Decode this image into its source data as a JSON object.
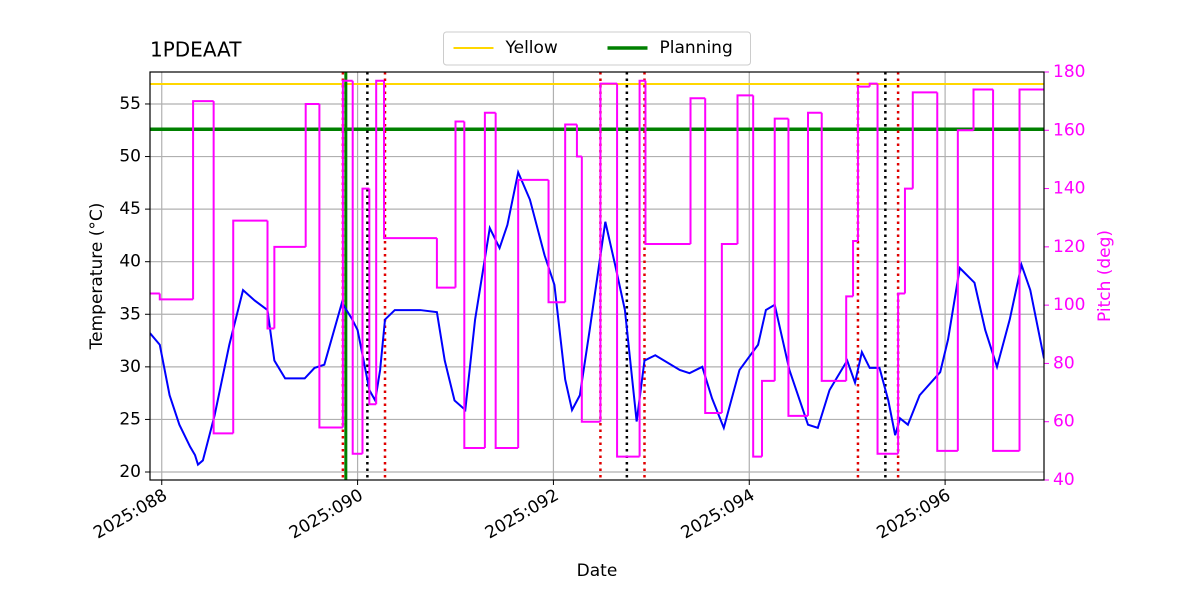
{
  "chart_data": {
    "type": "line",
    "title": "1PDEAAT",
    "xlabel": "Date",
    "ylabel": "Temperature (°C)",
    "y2label": "Pitch (deg)",
    "xlim": [
      87.88,
      97.01
    ],
    "xticks": [
      {
        "value": 88,
        "label": "2025:088"
      },
      {
        "value": 90,
        "label": "2025:090"
      },
      {
        "value": 92,
        "label": "2025:092"
      },
      {
        "value": 94,
        "label": "2025:094"
      },
      {
        "value": 96,
        "label": "2025:096"
      }
    ],
    "ylim": [
      19.24,
      58.04
    ],
    "yticks": [
      20,
      25,
      30,
      35,
      40,
      45,
      50,
      55
    ],
    "y2lim": [
      40,
      180
    ],
    "y2ticks": [
      40,
      60,
      80,
      100,
      120,
      140,
      160,
      180
    ],
    "y2color": "#ff00ff",
    "grid": true,
    "legend": "upper center",
    "hlines": [
      {
        "name": "Yellow",
        "color": "#ffd700",
        "value": 56.9
      },
      {
        "name": "Planning",
        "color": "#008000",
        "value": 52.6
      }
    ],
    "vlines": [
      {
        "x": 89.85,
        "color": "#e00000",
        "style": "dotted"
      },
      {
        "x": 89.88,
        "color": "#008000",
        "style": "solid"
      },
      {
        "x": 90.1,
        "color": "#000000",
        "style": "dotted"
      },
      {
        "x": 90.28,
        "color": "#e00000",
        "style": "dotted"
      },
      {
        "x": 92.48,
        "color": "#e00000",
        "style": "dotted"
      },
      {
        "x": 92.75,
        "color": "#000000",
        "style": "dotted"
      },
      {
        "x": 92.93,
        "color": "#e00000",
        "style": "dotted"
      },
      {
        "x": 95.11,
        "color": "#e00000",
        "style": "dotted"
      },
      {
        "x": 95.39,
        "color": "#000000",
        "style": "dotted"
      },
      {
        "x": 95.52,
        "color": "#e00000",
        "style": "dotted"
      }
    ],
    "series": [
      {
        "color": "#0000ff",
        "step": false,
        "x": [
          87.88,
          87.98,
          88.08,
          88.18,
          88.29,
          88.34,
          88.37,
          88.42,
          88.54,
          88.69,
          88.83,
          88.95,
          89.08,
          89.15,
          89.26,
          89.46,
          89.56,
          89.66,
          89.84,
          89.94,
          90.0,
          90.07,
          90.12,
          90.18,
          90.23,
          90.28,
          90.38,
          90.64,
          90.81,
          90.89,
          90.99,
          91.1,
          91.2,
          91.35,
          91.45,
          91.53,
          91.64,
          91.76,
          91.91,
          92.01,
          92.12,
          92.19,
          92.27,
          92.37,
          92.53,
          92.63,
          92.73,
          92.85,
          92.93,
          93.04,
          93.29,
          93.39,
          93.52,
          93.62,
          93.74,
          93.9,
          94.01,
          94.09,
          94.17,
          94.26,
          94.41,
          94.6,
          94.7,
          94.82,
          95.0,
          95.08,
          95.15,
          95.23,
          95.33,
          95.42,
          95.49,
          95.54,
          95.62,
          95.74,
          95.95,
          96.03,
          96.15,
          96.3,
          96.41,
          96.53,
          96.66,
          96.78,
          96.87,
          97.01
        ],
        "values": [
          33.2,
          32.1,
          27.3,
          24.5,
          22.4,
          21.6,
          20.7,
          21.1,
          25.4,
          32.1,
          37.3,
          36.3,
          35.4,
          30.6,
          28.9,
          28.9,
          29.9,
          30.2,
          36.1,
          34.6,
          33.5,
          30.2,
          27.8,
          26.8,
          29.7,
          34.5,
          35.4,
          35.4,
          35.2,
          30.6,
          26.8,
          25.9,
          34.5,
          43.2,
          41.3,
          43.5,
          48.5,
          45.9,
          40.6,
          37.8,
          28.8,
          25.9,
          27.3,
          33.5,
          43.8,
          39.7,
          35.4,
          24.8,
          30.6,
          31.1,
          29.7,
          29.4,
          30.0,
          27.0,
          24.2,
          29.7,
          31.1,
          32.1,
          35.4,
          35.9,
          29.7,
          24.5,
          24.2,
          27.8,
          30.6,
          28.5,
          31.4,
          29.9,
          29.9,
          26.8,
          23.5,
          25.1,
          24.5,
          27.3,
          29.5,
          32.6,
          39.4,
          38.0,
          33.5,
          30.0,
          34.5,
          39.7,
          37.3,
          30.8
        ]
      },
      {
        "color": "#ff00ff",
        "axis": "y2",
        "step": true,
        "x": [
          87.88,
          87.98,
          88.32,
          88.53,
          88.73,
          89.08,
          89.15,
          89.47,
          89.61,
          89.85,
          89.95,
          90.05,
          90.12,
          90.19,
          90.27,
          90.81,
          91.0,
          91.09,
          91.3,
          91.41,
          91.64,
          91.95,
          92.12,
          92.24,
          92.29,
          92.48,
          92.65,
          92.88,
          92.94,
          93.4,
          93.55,
          93.72,
          93.88,
          94.04,
          94.13,
          94.26,
          94.4,
          94.6,
          94.74,
          94.99,
          95.06,
          95.11,
          95.23,
          95.31,
          95.52,
          95.59,
          95.67,
          95.92,
          96.13,
          96.29,
          96.49,
          96.76,
          97.01
        ],
        "values": [
          104,
          102,
          170,
          56,
          129,
          92,
          120,
          169,
          58,
          177,
          49,
          140,
          66,
          177,
          123,
          106,
          163,
          51,
          166,
          51,
          143,
          101,
          162,
          151,
          60,
          176,
          48,
          177,
          121,
          171,
          63,
          121,
          172,
          48,
          74,
          164,
          62,
          166,
          74,
          103,
          122,
          175,
          176,
          49,
          104,
          140,
          173,
          50,
          160,
          174,
          50,
          174,
          174
        ]
      }
    ]
  }
}
